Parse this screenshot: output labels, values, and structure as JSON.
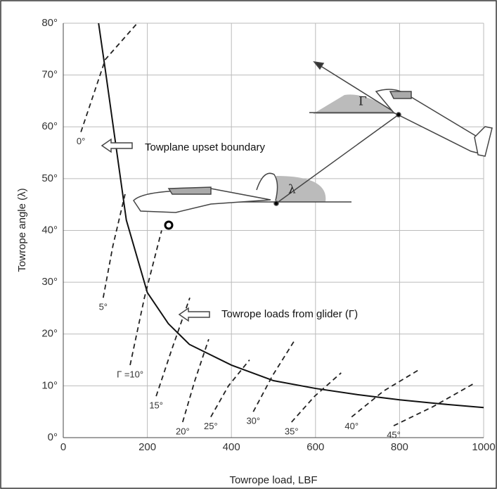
{
  "chart_data": {
    "type": "line",
    "x_label": "Towrope load, LBF",
    "y_label": "Towrope angle  (λ)",
    "xlim": [
      0,
      1000
    ],
    "ylim": [
      0,
      80
    ],
    "xticks": [
      0,
      200,
      400,
      600,
      800,
      1000
    ],
    "yticks": [
      {
        "value": 0,
        "label": "0°"
      },
      {
        "value": 10,
        "label": "10°"
      },
      {
        "value": 20,
        "label": "20°"
      },
      {
        "value": 30,
        "label": "30°"
      },
      {
        "value": 40,
        "label": "40°"
      },
      {
        "value": 50,
        "label": "50°"
      },
      {
        "value": 60,
        "label": "60°"
      },
      {
        "value": 70,
        "label": "70°"
      },
      {
        "value": 80,
        "label": "80°"
      }
    ],
    "grid": true,
    "annotations": [
      "Towplane upset boundary",
      "Towrope loads from glider (Γ)"
    ],
    "symbols": [
      "λ",
      "Γ"
    ],
    "boundary": {
      "color": "#111111",
      "x": [
        84,
        100,
        150,
        200,
        250,
        300,
        400,
        500,
        600,
        700,
        800,
        900,
        1000
      ],
      "values": [
        80,
        71,
        42,
        28,
        22,
        18,
        14,
        11,
        9.5,
        8.3,
        7.3,
        6.5,
        5.8
      ]
    },
    "series": [
      {
        "name": "0°",
        "color": "#222222",
        "x": [
          42,
          100,
          176
        ],
        "values": [
          59,
          73,
          80
        ]
      },
      {
        "name": "5°",
        "color": "#222222",
        "x": [
          95,
          118,
          147
        ],
        "values": [
          27,
          37,
          47
        ]
      },
      {
        "name": "Γ =10°",
        "color": "#222222",
        "x": [
          159,
          193,
          234
        ],
        "values": [
          14,
          27,
          40
        ]
      },
      {
        "name": "15°",
        "color": "#222222",
        "x": [
          221,
          258,
          301
        ],
        "values": [
          8,
          17,
          27
        ]
      },
      {
        "name": "20°",
        "color": "#222222",
        "x": [
          284,
          313,
          346
        ],
        "values": [
          3,
          11,
          19
        ]
      },
      {
        "name": "25°",
        "color": "#222222",
        "x": [
          351,
          393,
          443
        ],
        "values": [
          4,
          10,
          15
        ]
      },
      {
        "name": "30°",
        "color": "#222222",
        "x": [
          452,
          498,
          552
        ],
        "values": [
          5,
          12,
          19
        ]
      },
      {
        "name": "35°",
        "color": "#222222",
        "x": [
          543,
          598,
          661
        ],
        "values": [
          3,
          8,
          12.5
        ]
      },
      {
        "name": "40°",
        "color": "#222222",
        "x": [
          686,
          762,
          844
        ],
        "values": [
          4,
          9,
          13
        ]
      },
      {
        "name": "45°",
        "color": "#222222",
        "x": [
          786,
          880,
          978
        ],
        "values": [
          2.3,
          6,
          10.5
        ]
      }
    ]
  }
}
